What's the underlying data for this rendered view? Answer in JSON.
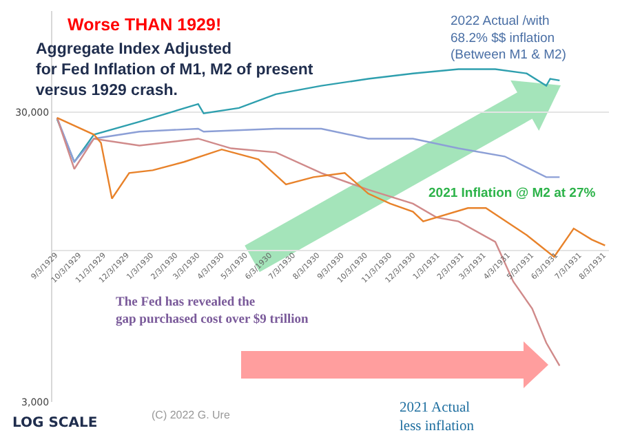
{
  "chart_data": {
    "type": "line",
    "title": "Worse THAN 1929!",
    "subtitle": "Aggregate Index Adjusted\nfor Fed Inflation of M1, M2 of present\nversus 1929 crash.",
    "annotations": [
      "2022 Actual /with\n68.2% $$ inflation\n(Between M1 & M2)",
      "2021 Inflation @ M2 at 27%",
      "The Fed has revealed the\ngap purchased cost over $9 trillion",
      "2021 Actual\nless inflation",
      "LOG SCALE",
      "(C) 2022 G. Ure"
    ],
    "series": [
      {
        "color": "#2e9fae",
        "x": [
          "1929-09-05",
          "1929-09-27",
          "1929-10-22",
          "1929-12-19",
          "1930-03-04",
          "1930-03-11",
          "1930-04-25",
          "1930-06-11",
          "1930-08-08",
          "1930-10-07",
          "1930-12-03",
          "1931-01-30",
          "1931-03-18",
          "1931-04-27",
          "1931-05-22",
          "1931-05-27",
          "1931-06-08"
        ],
        "values": [
          28400,
          20200,
          25100,
          27800,
          32000,
          29700,
          31000,
          34600,
          37000,
          39100,
          40800,
          42200,
          42200,
          40800,
          37000,
          39100,
          38600
        ]
      },
      {
        "color": "#8c9fd6",
        "x": [
          "1929-09-05",
          "1929-09-27",
          "1929-10-22",
          "1929-12-19",
          "1930-03-04",
          "1930-03-11",
          "1930-06-11",
          "1930-08-08",
          "1930-10-07",
          "1930-12-03",
          "1931-01-30",
          "1931-03-30",
          "1931-05-22",
          "1931-06-08"
        ],
        "values": [
          28700,
          20200,
          24300,
          25700,
          26300,
          25700,
          26300,
          26300,
          24300,
          24300,
          22500,
          21100,
          17900,
          17900
        ]
      },
      {
        "color": "#d08a8a",
        "x": [
          "1929-09-05",
          "1929-09-27",
          "1929-10-22",
          "1929-12-19",
          "1930-03-04",
          "1930-04-15",
          "1930-06-11",
          "1930-08-08",
          "1930-10-07",
          "1930-12-03",
          "1931-01-02",
          "1931-01-30",
          "1931-03-18",
          "1931-04-10",
          "1931-05-04",
          "1931-05-22",
          "1931-06-08"
        ],
        "values": [
          28700,
          19100,
          24300,
          23000,
          24300,
          22500,
          21800,
          18500,
          16200,
          14500,
          13000,
          12600,
          10700,
          7800,
          6300,
          4800,
          4000
        ]
      },
      {
        "color": "#e8822a",
        "x": [
          "1929-09-05",
          "1929-10-22",
          "1929-10-31",
          "1929-11-14",
          "1929-12-06",
          "1930-01-05",
          "1930-02-14",
          "1930-04-03",
          "1930-05-20",
          "1930-06-24",
          "1930-07-29",
          "1930-09-07",
          "1930-10-07",
          "1930-11-04",
          "1930-12-03",
          "1930-12-16",
          "1931-02-11",
          "1931-03-06",
          "1931-04-27",
          "1931-06-01",
          "1931-06-26",
          "1931-07-19",
          "1931-08-05"
        ],
        "values": [
          28700,
          25100,
          23500,
          15100,
          18500,
          18900,
          20200,
          22300,
          20600,
          16900,
          17900,
          18500,
          15700,
          14500,
          13600,
          12600,
          14000,
          14000,
          11300,
          9500,
          11900,
          10900,
          10400
        ]
      }
    ],
    "ylim": [
      3000,
      67000
    ],
    "yticks": [
      {
        "value": 3000,
        "label": "3,000"
      },
      {
        "value": 10000,
        "label": null
      },
      {
        "value": 30000,
        "label": "30,000"
      }
    ],
    "log": "y",
    "xlim": [
      "1929-08-30",
      "1931-08-10"
    ],
    "xticks": [
      {
        "value": "1929-09-03",
        "label": "9/3/1929"
      },
      {
        "value": "1929-10-03",
        "label": "10/3/1929"
      },
      {
        "value": "1929-11-03",
        "label": "11/3/1929"
      },
      {
        "value": "1929-12-03",
        "label": "12/3/1929"
      },
      {
        "value": "1930-01-03",
        "label": "1/3/1930"
      },
      {
        "value": "1930-02-03",
        "label": "2/3/1930"
      },
      {
        "value": "1930-03-03",
        "label": "3/3/1930"
      },
      {
        "value": "1930-04-03",
        "label": "4/3/1930"
      },
      {
        "value": "1930-05-03",
        "label": "5/3/1930"
      },
      {
        "value": "1930-06-03",
        "label": "6/3/1930"
      },
      {
        "value": "1930-07-03",
        "label": "7/3/1930"
      },
      {
        "value": "1930-08-03",
        "label": "8/3/1930"
      },
      {
        "value": "1930-09-03",
        "label": "9/3/1930"
      },
      {
        "value": "1930-10-03",
        "label": "10/3/1930"
      },
      {
        "value": "1930-11-03",
        "label": "11/3/1930"
      },
      {
        "value": "1930-12-03",
        "label": "12/3/1930"
      },
      {
        "value": "1931-01-03",
        "label": "1/3/1931"
      },
      {
        "value": "1931-02-03",
        "label": "2/3/1931"
      },
      {
        "value": "1931-03-03",
        "label": "3/3/1931"
      },
      {
        "value": "1931-04-03",
        "label": "4/3/1931"
      },
      {
        "value": "1931-05-03",
        "label": "5/3/1931"
      },
      {
        "value": "1931-06-03",
        "label": "6/3/1931"
      },
      {
        "value": "1931-07-03",
        "label": "7/3/1931"
      },
      {
        "value": "1931-08-03",
        "label": "8/3/1931"
      }
    ],
    "grid": "y",
    "marker": "none",
    "line_style": "solid"
  }
}
